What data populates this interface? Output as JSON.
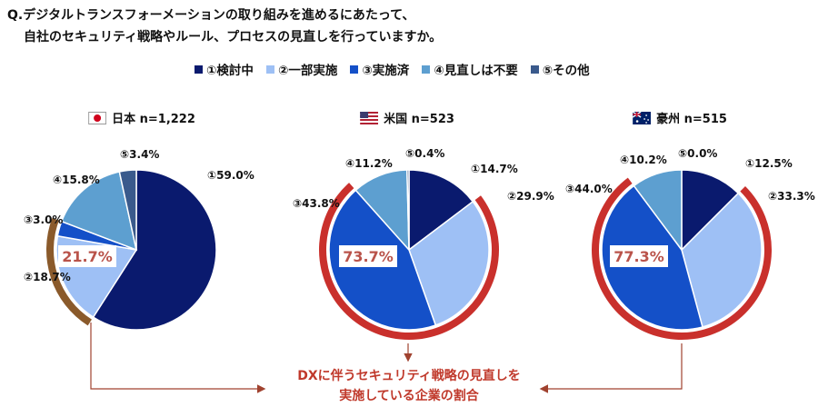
{
  "question": {
    "line1": "Q.デジタルトランスフォーメーションの取り組みを進めるにあたって、",
    "line2": "自社のセキュリティ戦略やルール、プロセスの見直しを行っていますか。"
  },
  "legend": [
    {
      "label": "①検討中",
      "color": "#0a1a6e"
    },
    {
      "label": "②一部実施",
      "color": "#9ec0f5"
    },
    {
      "label": "③実施済",
      "color": "#1450c8"
    },
    {
      "label": "④見直しは不要",
      "color": "#5d9fd0"
    },
    {
      "label": "⑤その他",
      "color": "#3a5a8c"
    }
  ],
  "note": {
    "line1": "DXに伴うセキュリティ戦略の見直しを",
    "line2": "実施している企業の割合"
  },
  "chart_data": [
    {
      "type": "pie",
      "title": "日本 n=1,222",
      "categories": [
        "①",
        "②",
        "③",
        "④",
        "⑤"
      ],
      "values": [
        59.0,
        18.7,
        3.0,
        15.8,
        3.4
      ],
      "labels": [
        "①59.0%",
        "②18.7%",
        "③3.0%",
        "④15.8%",
        "⑤3.4%"
      ],
      "highlight": "21.7%",
      "flag": "japan-flag-icon"
    },
    {
      "type": "pie",
      "title": "米国 n=523",
      "categories": [
        "①",
        "②",
        "③",
        "④",
        "⑤"
      ],
      "values": [
        14.7,
        29.9,
        43.8,
        11.2,
        0.4
      ],
      "labels": [
        "①14.7%",
        "②29.9%",
        "③43.8%",
        "④11.2%",
        "⑤0.4%"
      ],
      "highlight": "73.7%",
      "flag": "usa-flag-icon"
    },
    {
      "type": "pie",
      "title": "豪州 n=515",
      "categories": [
        "①",
        "②",
        "③",
        "④",
        "⑤"
      ],
      "values": [
        12.5,
        33.3,
        44.0,
        10.2,
        0.0
      ],
      "labels": [
        "①12.5%",
        "②33.3%",
        "③44.0%",
        "④10.2%",
        "⑤0.0%"
      ],
      "highlight": "77.3%",
      "flag": "australia-flag-icon"
    }
  ]
}
